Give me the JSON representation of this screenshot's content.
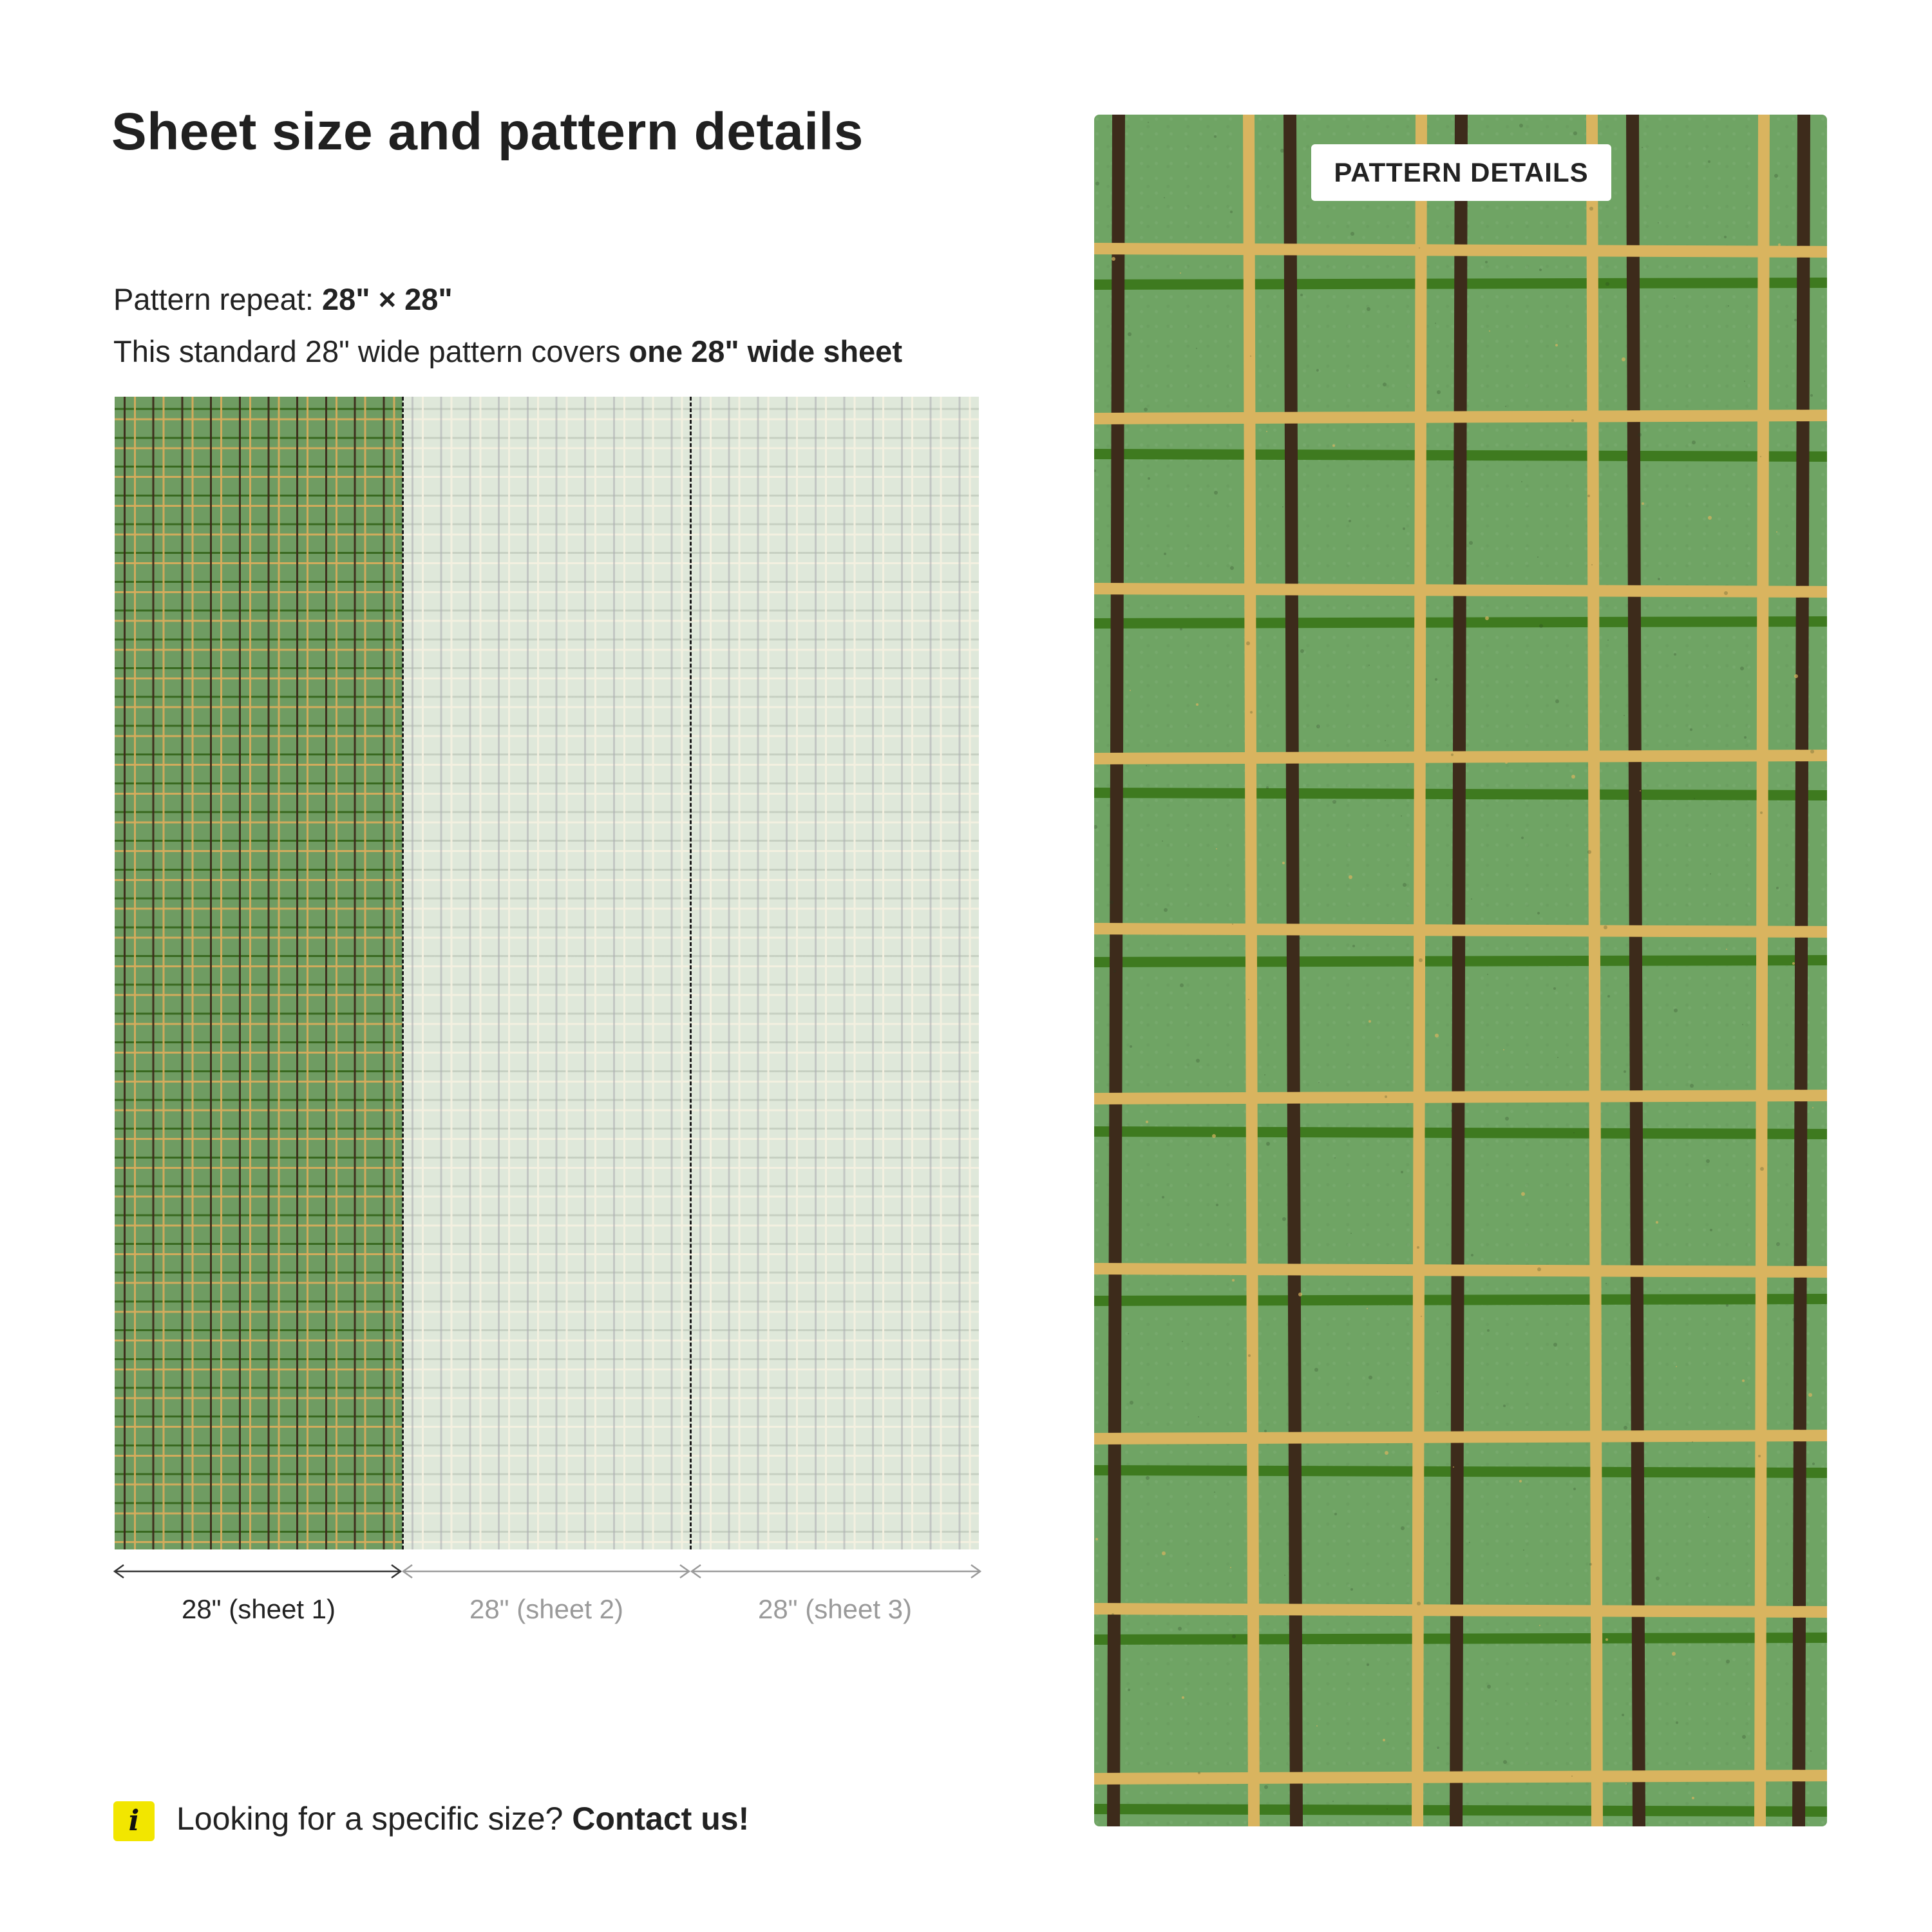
{
  "header": {
    "title": "Sheet size and pattern details"
  },
  "repeat": {
    "label": "Pattern repeat: ",
    "value": "28\" × 28\""
  },
  "coverage": {
    "text": "This standard 28\" wide pattern covers ",
    "emphasis": "one 28\" wide sheet"
  },
  "sheets": {
    "labels": [
      "28\" (sheet 1)",
      "28\" (sheet 2)",
      "28\" (sheet 3)"
    ]
  },
  "info": {
    "icon": "info-icon",
    "icon_glyph": "i",
    "text": "Looking for a specific size? ",
    "link": "Contact us!"
  },
  "detail": {
    "badge": "PATTERN DETAILS"
  },
  "colors": {
    "pattern_green": "#6fa464",
    "stripe_gold": "#d9b45f",
    "stripe_brown": "#3d2b1b",
    "stripe_dark_green": "#3e7a1f",
    "info_yellow": "#f2e600"
  }
}
